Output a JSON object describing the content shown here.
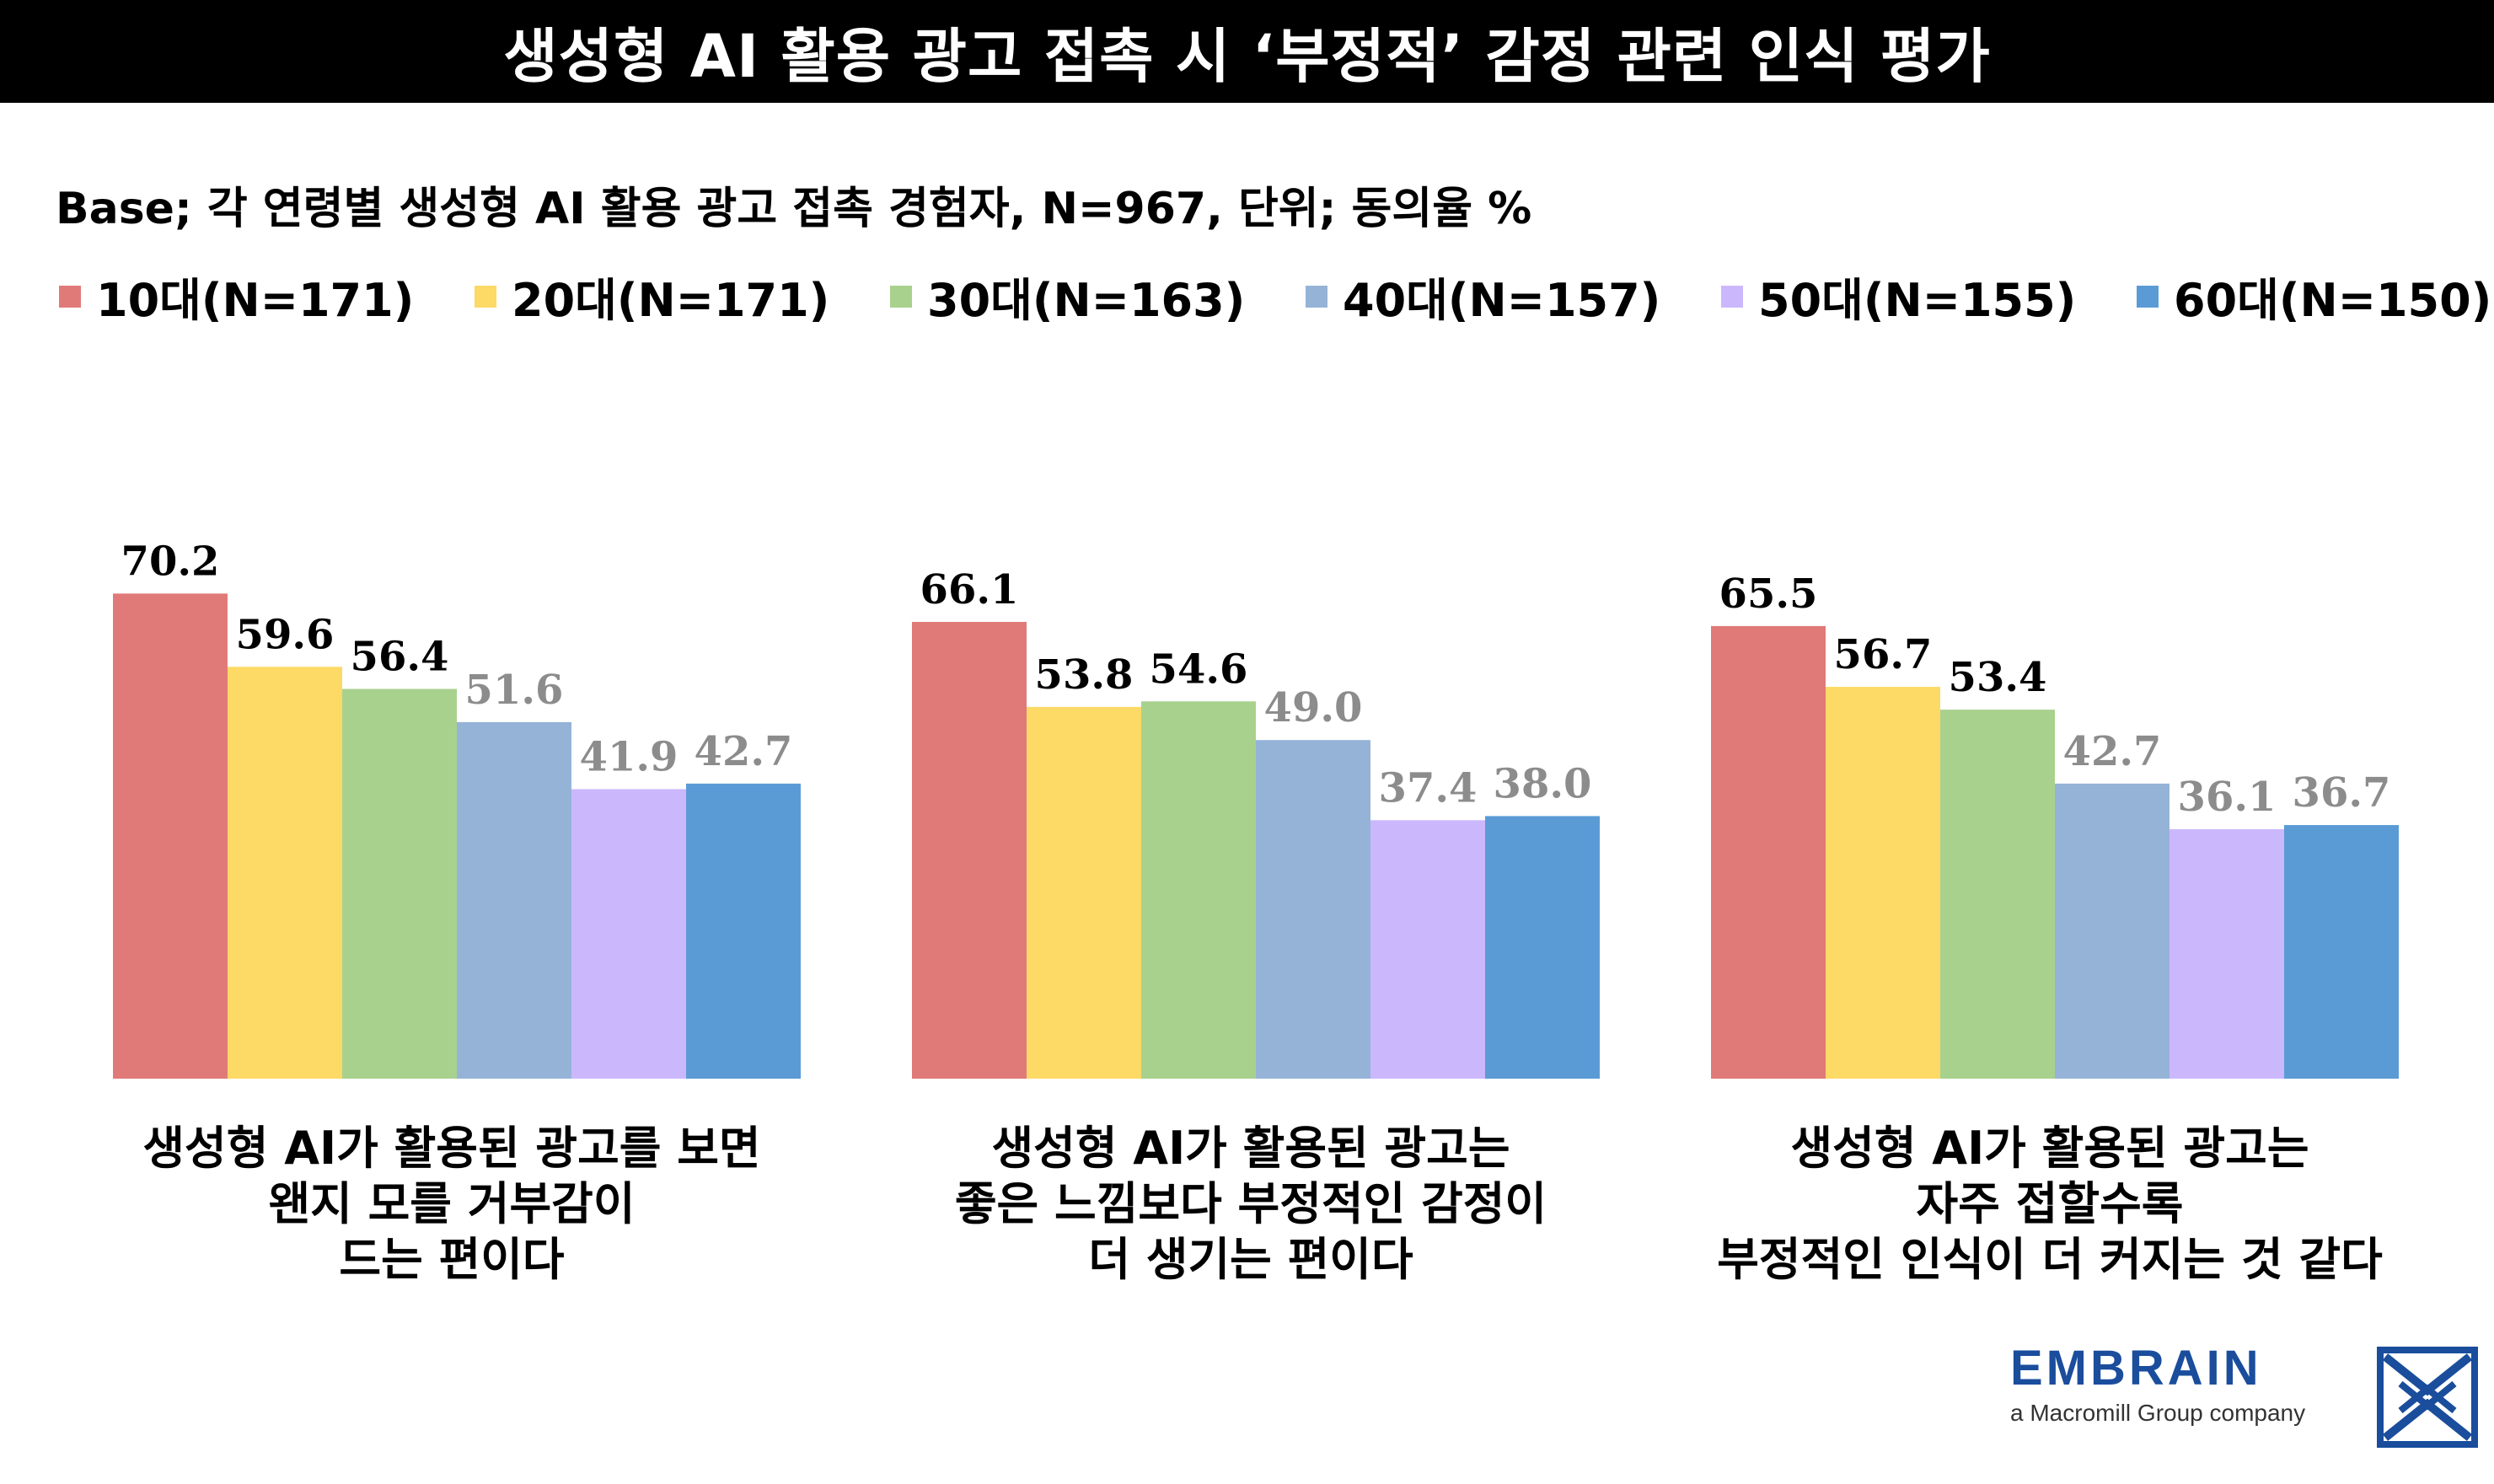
{
  "header": {
    "title": "생성형 AI 활용 광고 접촉 시 ‘부정적’ 감정 관련 인식 평가"
  },
  "base_note": "Base; 각 연령별 생성형 AI 활용 광고 접촉 경험자, N=967, 단위; 동의율 %",
  "logo": {
    "name": "EMBRAIN",
    "tagline": "a Macromill Group company"
  },
  "colors": {
    "title_bg": "#000000",
    "value_dark": "#000000",
    "value_light": "#8c8c8c",
    "logo_blue": "#1a4d9c"
  },
  "chart_data": {
    "type": "bar",
    "title": "생성형 AI 활용 광고 접촉 시 ‘부정적’ 감정 관련 인식 평가",
    "xlabel": "",
    "ylabel": "동의율 %",
    "ylim": [
      0,
      75
    ],
    "legend_position": "top",
    "categories": [
      [
        "생성형 AI가 활용된 광고를 보면",
        "왠지 모를 거부감이",
        "드는 편이다"
      ],
      [
        "생성형 AI가 활용된 광고는",
        "좋은 느낌보다 부정적인 감정이",
        "더 생기는 편이다"
      ],
      [
        "생성형 AI가 활용된 광고는",
        "자주 접할수록",
        "부정적인 인식이 더 커지는 것 같다"
      ]
    ],
    "series": [
      {
        "name": "10대(N=171)",
        "color": "#e07a78",
        "values": [
          70.2,
          66.1,
          65.5
        ],
        "labels": [
          "70.2",
          "66.1",
          "65.5"
        ],
        "label_style": "dark"
      },
      {
        "name": "20대(N=171)",
        "color": "#fdd966",
        "values": [
          59.6,
          53.8,
          56.7
        ],
        "labels": [
          "59.6",
          "53.8",
          "56.7"
        ],
        "label_style": "dark"
      },
      {
        "name": "30대(N=163)",
        "color": "#a9d18e",
        "values": [
          56.4,
          54.6,
          53.4
        ],
        "labels": [
          "56.4",
          "54.6",
          "53.4"
        ],
        "label_style": "dark"
      },
      {
        "name": "40대(N=157)",
        "color": "#95b3d7",
        "values": [
          51.6,
          49.0,
          42.7
        ],
        "labels": [
          "51.6",
          "49.0",
          "42.7"
        ],
        "label_style": "light"
      },
      {
        "name": "50대(N=155)",
        "color": "#cbb8fc",
        "values": [
          41.9,
          37.4,
          36.1
        ],
        "labels": [
          "41.9",
          "37.4",
          "36.1"
        ],
        "label_style": "light"
      },
      {
        "name": "60대(N=150)",
        "color": "#5b9bd5",
        "values": [
          42.7,
          38.0,
          36.7
        ],
        "labels": [
          "42.7",
          "38.0",
          "36.7"
        ],
        "label_style": "light"
      }
    ]
  }
}
